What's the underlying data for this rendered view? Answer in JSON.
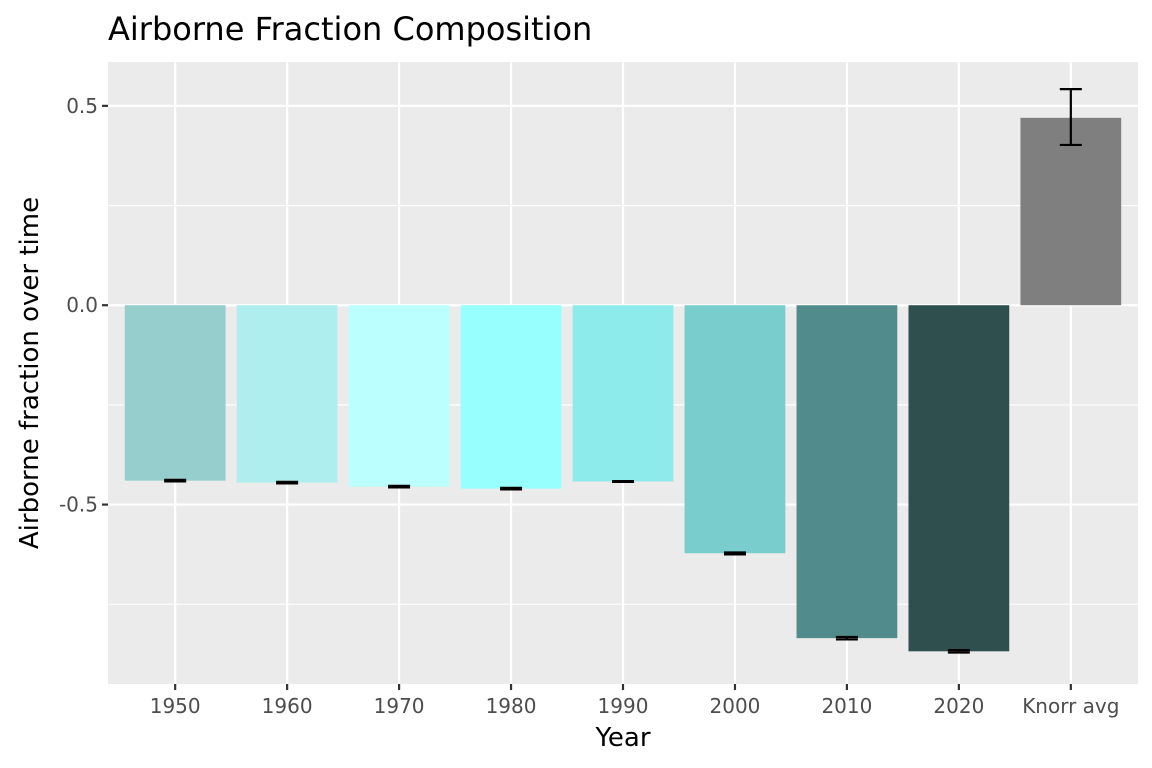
{
  "chart_data": {
    "type": "bar",
    "title": "Airborne Fraction Composition",
    "xlabel": "Year",
    "ylabel": "Airborne fraction over time",
    "categories": [
      "1950",
      "1960",
      "1970",
      "1980",
      "1990",
      "2000",
      "2010",
      "2020",
      "Knorr avg"
    ],
    "values": [
      -0.44,
      -0.445,
      -0.455,
      -0.46,
      -0.442,
      -0.622,
      -0.835,
      -0.868,
      0.47
    ],
    "error_low": [
      -0.442,
      -0.447,
      -0.457,
      -0.462,
      -0.443,
      -0.625,
      -0.838,
      -0.871,
      0.402
    ],
    "error_high": [
      -0.438,
      -0.443,
      -0.453,
      -0.458,
      -0.441,
      -0.62,
      -0.832,
      -0.865,
      0.542
    ],
    "colors": [
      "#96CDCD",
      "#AEEEEE",
      "#BBFFFF",
      "#98FFFF",
      "#8DEBEB",
      "#79CDCD",
      "#528B8B",
      "#2F4F4F",
      "#7F7F7F"
    ],
    "yticks": [
      -0.5,
      0.0,
      0.5
    ],
    "ytick_labels": [
      "-0.5",
      "0.0",
      "0.5"
    ],
    "ylim": [
      -0.95,
      0.61
    ],
    "grid": true,
    "panel_background": "#EBEBEB",
    "gridline_color": "#FFFFFF"
  }
}
